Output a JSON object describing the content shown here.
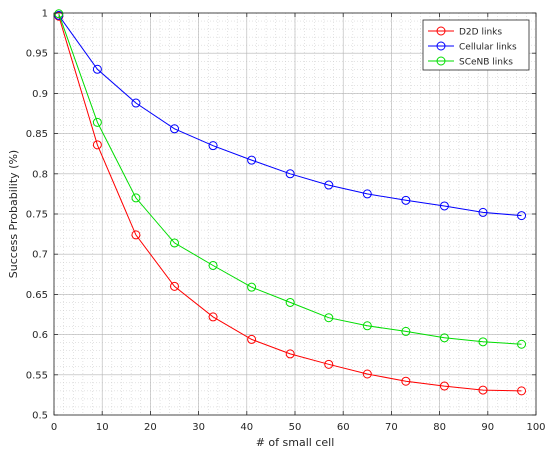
{
  "chart_data": {
    "type": "line",
    "title": "",
    "xlabel": "# of small cell",
    "ylabel": "Success Probability (%)",
    "xlim": [
      0,
      100
    ],
    "ylim": [
      0.5,
      1
    ],
    "xticks": [
      0,
      10,
      20,
      30,
      40,
      50,
      60,
      70,
      80,
      90,
      100
    ],
    "yticks": [
      0.5,
      0.55,
      0.6,
      0.65,
      0.7,
      0.75,
      0.8,
      0.85,
      0.9,
      0.95,
      1
    ],
    "xtick_labels": [
      "0",
      "10",
      "20",
      "30",
      "40",
      "50",
      "60",
      "70",
      "80",
      "90",
      "100"
    ],
    "ytick_labels": [
      "0.5",
      "0.55",
      "0.6",
      "0.65",
      "0.7",
      "0.75",
      "0.8",
      "0.85",
      "0.9",
      "0.95",
      "1"
    ],
    "grid": true,
    "minor_grid": true,
    "legend_position": "top-right",
    "x": [
      1,
      9,
      17,
      25,
      33,
      41,
      49,
      57,
      65,
      73,
      81,
      89,
      97
    ],
    "series": [
      {
        "name": "D2D links",
        "color": "#ff0000",
        "marker": "circle",
        "values": [
          0.996,
          0.836,
          0.724,
          0.66,
          0.622,
          0.594,
          0.576,
          0.563,
          0.551,
          0.542,
          0.536,
          0.531,
          0.53
        ]
      },
      {
        "name": "Cellular links",
        "color": "#0000ff",
        "marker": "circle",
        "values": [
          0.997,
          0.93,
          0.888,
          0.856,
          0.835,
          0.817,
          0.8,
          0.786,
          0.775,
          0.767,
          0.76,
          0.752,
          0.748
        ]
      },
      {
        "name": "SCeNB links",
        "color": "#00dd00",
        "marker": "circle",
        "values": [
          0.999,
          0.864,
          0.77,
          0.714,
          0.686,
          0.659,
          0.64,
          0.621,
          0.611,
          0.604,
          0.596,
          0.591,
          0.588
        ]
      }
    ]
  }
}
